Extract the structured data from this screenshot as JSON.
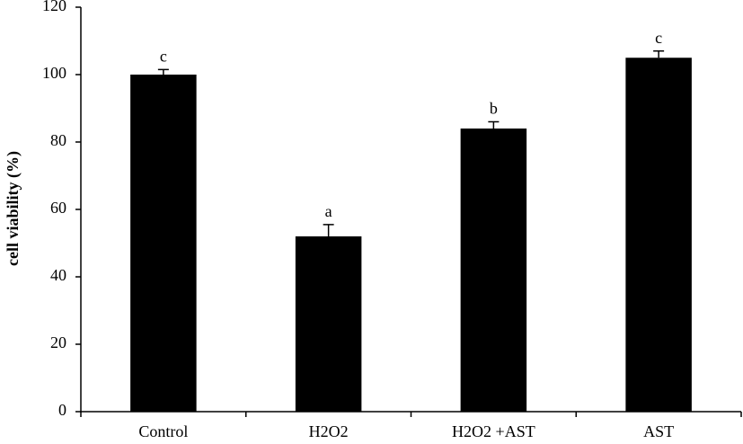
{
  "chart_data": {
    "type": "bar",
    "y_label": "cell viability (%)",
    "categories": [
      "Control",
      "H2O2",
      "H2O2 +AST",
      "AST"
    ],
    "values": [
      100,
      52,
      84,
      105
    ],
    "errors": [
      1.5,
      3.5,
      2,
      2
    ],
    "significance_letters": [
      "c",
      "a",
      "b",
      "c"
    ],
    "color": "#000000",
    "ylim": [
      0,
      120
    ],
    "yticks": [
      0,
      20,
      40,
      60,
      80,
      100,
      120
    ],
    "grid": false
  }
}
